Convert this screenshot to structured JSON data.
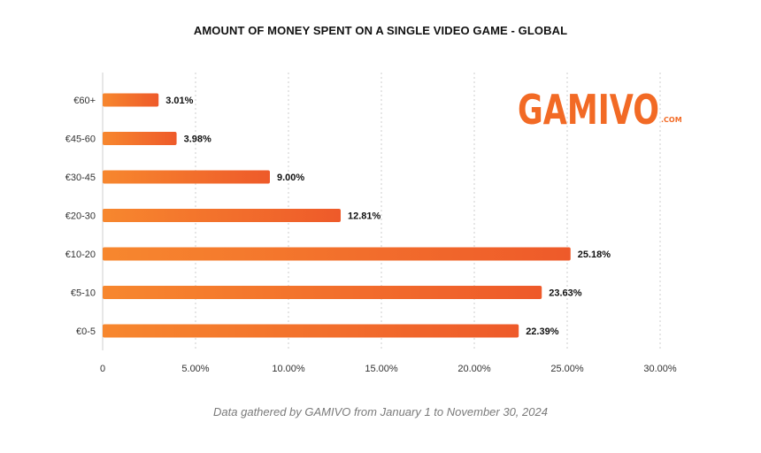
{
  "chart_data": {
    "type": "bar",
    "orientation": "horizontal",
    "title": "AMOUNT OF MONEY SPENT ON A SINGLE VIDEO GAME - GLOBAL",
    "categories": [
      "€60+",
      "€45-60",
      "€30-45",
      "€20-30",
      "€10-20",
      "€5-10",
      "€0-5"
    ],
    "values": [
      3.01,
      3.98,
      9.0,
      12.81,
      25.18,
      23.63,
      22.39
    ],
    "value_labels": [
      "3.01%",
      "3.98%",
      "9.00%",
      "12.81%",
      "25.18%",
      "23.63%",
      "22.39%"
    ],
    "xlim": [
      0,
      30
    ],
    "x_ticks": [
      "0",
      "5.00%",
      "10.00%",
      "15.00%",
      "20.00%",
      "25.00%",
      "30.00%"
    ],
    "xlabel": "",
    "ylabel": "",
    "grid": "vertical dashed",
    "legend": "none"
  },
  "logo": {
    "text": "GAMIVO",
    "suffix": ".COM"
  },
  "footnote": "Data gathered by GAMIVO from January 1 to November 30, 2024",
  "colors": {
    "bar_start": "#f7872e",
    "bar_end": "#ee5a2a",
    "logo": "#f26a25"
  }
}
